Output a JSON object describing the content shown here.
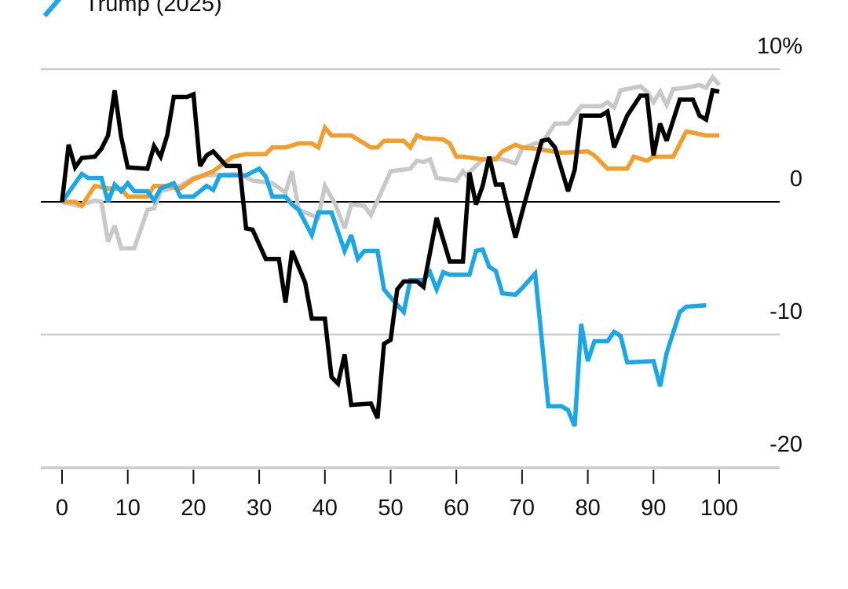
{
  "chart_data": {
    "type": "line",
    "title": "",
    "xlabel": "",
    "ylabel": "",
    "xlim": [
      0,
      100
    ],
    "ylim": [
      -20,
      10
    ],
    "y_unit_suffix": "%",
    "x_ticks": [
      0,
      10,
      20,
      30,
      40,
      50,
      60,
      70,
      80,
      90,
      100
    ],
    "y_ticks": [
      {
        "value": 10,
        "label": "10%"
      },
      {
        "value": 0,
        "label": "0"
      },
      {
        "value": -10,
        "label": "-10"
      },
      {
        "value": -20,
        "label": "-20"
      }
    ],
    "grid": "horizontal",
    "legend_placement": "top-left",
    "legend": [
      {
        "label": "Trump (2025)",
        "color": "#1aa7e8"
      }
    ],
    "series": [
      {
        "color": "#c8c8c8",
        "points": [
          [
            0,
            0
          ],
          [
            2.5,
            -0.3
          ],
          [
            5,
            0.1
          ],
          [
            6,
            0
          ],
          [
            7,
            -3.0
          ],
          [
            8,
            -1.8
          ],
          [
            9,
            -3.5
          ],
          [
            11,
            -3.5
          ],
          [
            13,
            -0.6
          ],
          [
            14,
            -0.5
          ],
          [
            15,
            0.8
          ],
          [
            18,
            1.2
          ],
          [
            20,
            1.8
          ],
          [
            22,
            2.0
          ],
          [
            27,
            2.1
          ],
          [
            29,
            1.6
          ],
          [
            32,
            1.4
          ],
          [
            34,
            0.7
          ],
          [
            35,
            2.3
          ],
          [
            36,
            -0.6
          ],
          [
            39,
            -1.2
          ],
          [
            40,
            1.2
          ],
          [
            41.5,
            -0.1
          ],
          [
            43,
            -2.0
          ],
          [
            44,
            -0.2
          ],
          [
            46,
            -0.3
          ],
          [
            47,
            -1.0
          ],
          [
            49,
            1.2
          ],
          [
            50,
            2.3
          ],
          [
            53,
            2.5
          ],
          [
            54,
            3.1
          ],
          [
            55,
            3.0
          ],
          [
            56,
            3.2
          ],
          [
            57,
            1.8
          ],
          [
            60,
            1.6
          ],
          [
            61,
            2.3
          ],
          [
            61.5,
            2.0
          ],
          [
            64,
            3.2
          ],
          [
            66,
            3.3
          ],
          [
            67,
            3.2
          ],
          [
            69,
            2.9
          ],
          [
            70,
            4.0
          ],
          [
            72,
            4.4
          ],
          [
            73,
            4.4
          ],
          [
            75,
            5.9
          ],
          [
            77,
            5.9
          ],
          [
            79,
            7.2
          ],
          [
            82,
            7.2
          ],
          [
            83,
            7.5
          ],
          [
            84,
            7.1
          ],
          [
            85,
            8.4
          ],
          [
            88,
            8.7
          ],
          [
            89,
            8.3
          ],
          [
            90,
            7.5
          ],
          [
            91,
            8.3
          ],
          [
            92,
            7.3
          ],
          [
            93,
            8.5
          ],
          [
            95,
            8.6
          ],
          [
            97,
            8.8
          ],
          [
            98,
            8.6
          ],
          [
            99,
            9.4
          ],
          [
            100,
            8.8
          ]
        ]
      },
      {
        "color": "#f29e2e",
        "points": [
          [
            0,
            0
          ],
          [
            2,
            0
          ],
          [
            3,
            -0.3
          ],
          [
            5,
            1.2
          ],
          [
            7,
            1.0
          ],
          [
            9,
            1.0
          ],
          [
            10,
            0.4
          ],
          [
            13,
            0.4
          ],
          [
            14,
            1.2
          ],
          [
            16,
            1.2
          ],
          [
            18,
            1.0
          ],
          [
            20,
            1.7
          ],
          [
            23,
            2.3
          ],
          [
            26,
            3.4
          ],
          [
            28,
            3.6
          ],
          [
            31,
            3.6
          ],
          [
            32,
            4.1
          ],
          [
            34,
            4.1
          ],
          [
            36,
            4.4
          ],
          [
            38,
            4.4
          ],
          [
            39,
            4.1
          ],
          [
            40,
            5.6
          ],
          [
            41,
            5.0
          ],
          [
            44,
            5.0
          ],
          [
            47,
            4.1
          ],
          [
            48,
            4.1
          ],
          [
            49,
            4.6
          ],
          [
            52,
            4.6
          ],
          [
            53,
            4.1
          ],
          [
            54,
            5.0
          ],
          [
            55,
            4.8
          ],
          [
            58,
            4.7
          ],
          [
            59,
            4.4
          ],
          [
            60,
            3.4
          ],
          [
            61,
            3.4
          ],
          [
            64,
            3.2
          ],
          [
            66,
            3.2
          ],
          [
            67,
            3.8
          ],
          [
            69,
            4.3
          ],
          [
            70,
            4.1
          ],
          [
            72,
            4.0
          ],
          [
            76,
            3.7
          ],
          [
            80,
            3.8
          ],
          [
            81,
            3.5
          ],
          [
            83,
            2.5
          ],
          [
            86,
            2.5
          ],
          [
            87,
            3.4
          ],
          [
            89,
            3.1
          ],
          [
            90,
            3.4
          ],
          [
            93,
            3.4
          ],
          [
            95,
            5.3
          ],
          [
            97,
            5.1
          ],
          [
            98,
            5.0
          ],
          [
            100,
            5.0
          ]
        ]
      },
      {
        "name": "Trump (2025)",
        "color": "#1aa7e8",
        "points": [
          [
            0,
            0
          ],
          [
            3,
            2.1
          ],
          [
            4,
            1.8
          ],
          [
            6,
            1.8
          ],
          [
            7,
            0
          ],
          [
            8,
            1.3
          ],
          [
            9,
            0.8
          ],
          [
            10,
            1.4
          ],
          [
            11,
            0.8
          ],
          [
            13,
            0.8
          ],
          [
            14,
            0.1
          ],
          [
            15,
            1.0
          ],
          [
            17,
            1.4
          ],
          [
            18,
            0.4
          ],
          [
            20,
            0.4
          ],
          [
            22,
            1.2
          ],
          [
            23,
            0.9
          ],
          [
            24,
            2.0
          ],
          [
            26,
            2.0
          ],
          [
            28,
            2.0
          ],
          [
            30,
            2.5
          ],
          [
            31,
            1.9
          ],
          [
            32,
            0.4
          ],
          [
            34,
            0.4
          ],
          [
            35,
            -0.2
          ],
          [
            36,
            -0.6
          ],
          [
            38,
            -2.5
          ],
          [
            39,
            -0.8
          ],
          [
            41,
            -0.8
          ],
          [
            43,
            -3.7
          ],
          [
            44,
            -2.5
          ],
          [
            45,
            -4.3
          ],
          [
            46,
            -3.7
          ],
          [
            48,
            -3.7
          ],
          [
            49,
            -6.6
          ],
          [
            50,
            -7.2
          ],
          [
            52,
            -8.3
          ],
          [
            53,
            -5.9
          ],
          [
            55,
            -5.9
          ],
          [
            56,
            -5.3
          ],
          [
            57,
            -6.6
          ],
          [
            58,
            -5.3
          ],
          [
            59,
            -5.5
          ],
          [
            62,
            -5.5
          ],
          [
            63,
            -3.7
          ],
          [
            64,
            -3.6
          ],
          [
            65,
            -4.9
          ],
          [
            66,
            -5.2
          ],
          [
            67,
            -6.9
          ],
          [
            69,
            -7.0
          ],
          [
            70,
            -6.5
          ],
          [
            72,
            -5.4
          ],
          [
            74,
            -15.4
          ],
          [
            76,
            -15.4
          ],
          [
            77,
            -15.7
          ],
          [
            78,
            -16.9
          ],
          [
            79,
            -9.2
          ],
          [
            80,
            -12.0
          ],
          [
            81,
            -10.5
          ],
          [
            83,
            -10.5
          ],
          [
            84,
            -9.8
          ],
          [
            85,
            -10.1
          ],
          [
            86,
            -12.1
          ],
          [
            90,
            -12.0
          ],
          [
            91,
            -13.9
          ],
          [
            92,
            -11.4
          ],
          [
            94,
            -8.3
          ],
          [
            95,
            -7.9
          ],
          [
            98,
            -7.8
          ]
        ]
      },
      {
        "color": "#000000",
        "points": [
          [
            0,
            0
          ],
          [
            1,
            4.3
          ],
          [
            2,
            2.6
          ],
          [
            3,
            3.3
          ],
          [
            5,
            3.4
          ],
          [
            6,
            4.0
          ],
          [
            7,
            5.0
          ],
          [
            8,
            8.4
          ],
          [
            9,
            4.9
          ],
          [
            10,
            2.6
          ],
          [
            13,
            2.5
          ],
          [
            14,
            4.2
          ],
          [
            15,
            3.4
          ],
          [
            16,
            5.0
          ],
          [
            17,
            7.9
          ],
          [
            19,
            7.9
          ],
          [
            20,
            8.1
          ],
          [
            21,
            2.7
          ],
          [
            22,
            3.5
          ],
          [
            23,
            3.8
          ],
          [
            25,
            2.7
          ],
          [
            27,
            2.7
          ],
          [
            28,
            -2.0
          ],
          [
            29,
            -2.1
          ],
          [
            31,
            -4.3
          ],
          [
            33,
            -4.3
          ],
          [
            34,
            -7.6
          ],
          [
            35,
            -3.7
          ],
          [
            37,
            -6.1
          ],
          [
            38,
            -8.8
          ],
          [
            40,
            -8.8
          ],
          [
            41,
            -13.2
          ],
          [
            42,
            -13.7
          ],
          [
            43,
            -11.5
          ],
          [
            44,
            -15.3
          ],
          [
            47,
            -15.2
          ],
          [
            48,
            -16.3
          ],
          [
            49,
            -10.7
          ],
          [
            50,
            -10.4
          ],
          [
            51,
            -6.6
          ],
          [
            52,
            -6.0
          ],
          [
            54,
            -6.0
          ],
          [
            55,
            -6.4
          ],
          [
            57,
            -1.2
          ],
          [
            59,
            -4.5
          ],
          [
            61,
            -4.5
          ],
          [
            62,
            2.2
          ],
          [
            63,
            -0.2
          ],
          [
            64,
            1.2
          ],
          [
            65,
            3.4
          ],
          [
            66,
            1.3
          ],
          [
            67,
            1.3
          ],
          [
            69,
            -2.7
          ],
          [
            70,
            -0.8
          ],
          [
            72,
            2.8
          ],
          [
            73,
            4.6
          ],
          [
            74,
            4.7
          ],
          [
            75,
            4.1
          ],
          [
            77,
            0.8
          ],
          [
            78,
            2.4
          ],
          [
            79,
            6.5
          ],
          [
            82,
            6.5
          ],
          [
            83,
            6.8
          ],
          [
            84,
            4.1
          ],
          [
            86,
            6.5
          ],
          [
            88,
            8.0
          ],
          [
            89,
            8.0
          ],
          [
            90,
            3.5
          ],
          [
            91,
            5.9
          ],
          [
            92,
            4.6
          ],
          [
            94,
            7.7
          ],
          [
            96,
            7.7
          ],
          [
            97,
            6.5
          ],
          [
            98,
            6.2
          ],
          [
            99,
            8.4
          ],
          [
            100,
            8.3
          ]
        ]
      }
    ]
  }
}
